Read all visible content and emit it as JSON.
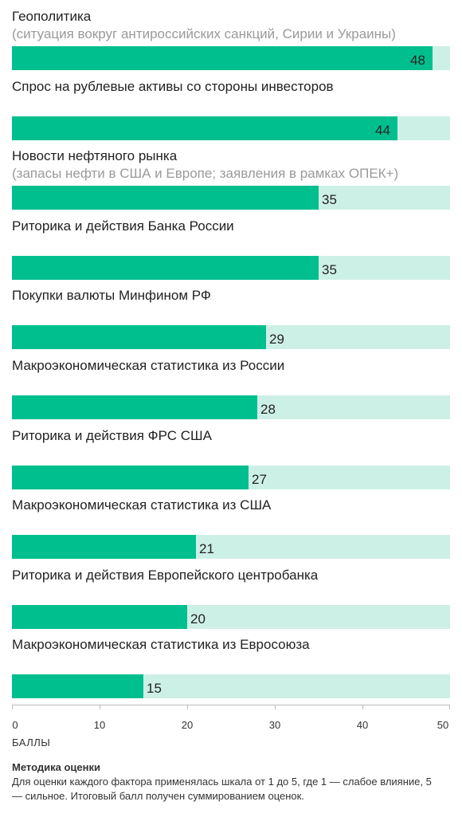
{
  "chart_data": {
    "type": "bar",
    "orientation": "horizontal",
    "categories": [
      "Геополитика",
      "Спрос на рублевые активы со стороны инвесторов",
      "Новости нефтяного рынка",
      "Риторика и действия Банка России",
      "Покупки валюты Минфином РФ",
      "Макроэкономическая статистика из России",
      "Риторика и действия ФРС США",
      "Макроэкономическая статистика из США",
      "Риторика и действия Европейского центробанка",
      "Макроэкономическая статистика из Евросоюза"
    ],
    "subtitles": [
      "(ситуация вокруг антироссийских санкций, Сирии и Украины)",
      "",
      "(запасы нефти в США и Европе; заявления в рамках ОПЕК+)",
      "",
      "",
      "",
      "",
      "",
      "",
      ""
    ],
    "values": [
      48,
      44,
      35,
      35,
      29,
      28,
      27,
      21,
      20,
      15
    ],
    "xlim": [
      0,
      50
    ],
    "xticks": [
      0,
      10,
      20,
      30,
      40,
      50
    ],
    "xlabel": "БАЛЛЫ",
    "colors": {
      "bar": "#00bf8f",
      "track": "#cdf0e6"
    }
  },
  "note": {
    "title": "Методика оценки",
    "text": "Для оценки каждого фактора применялась шкала от 1 до 5, где 1 — слабое влияние, 5 — сильное. Итоговый балл получен суммированием оценок."
  }
}
